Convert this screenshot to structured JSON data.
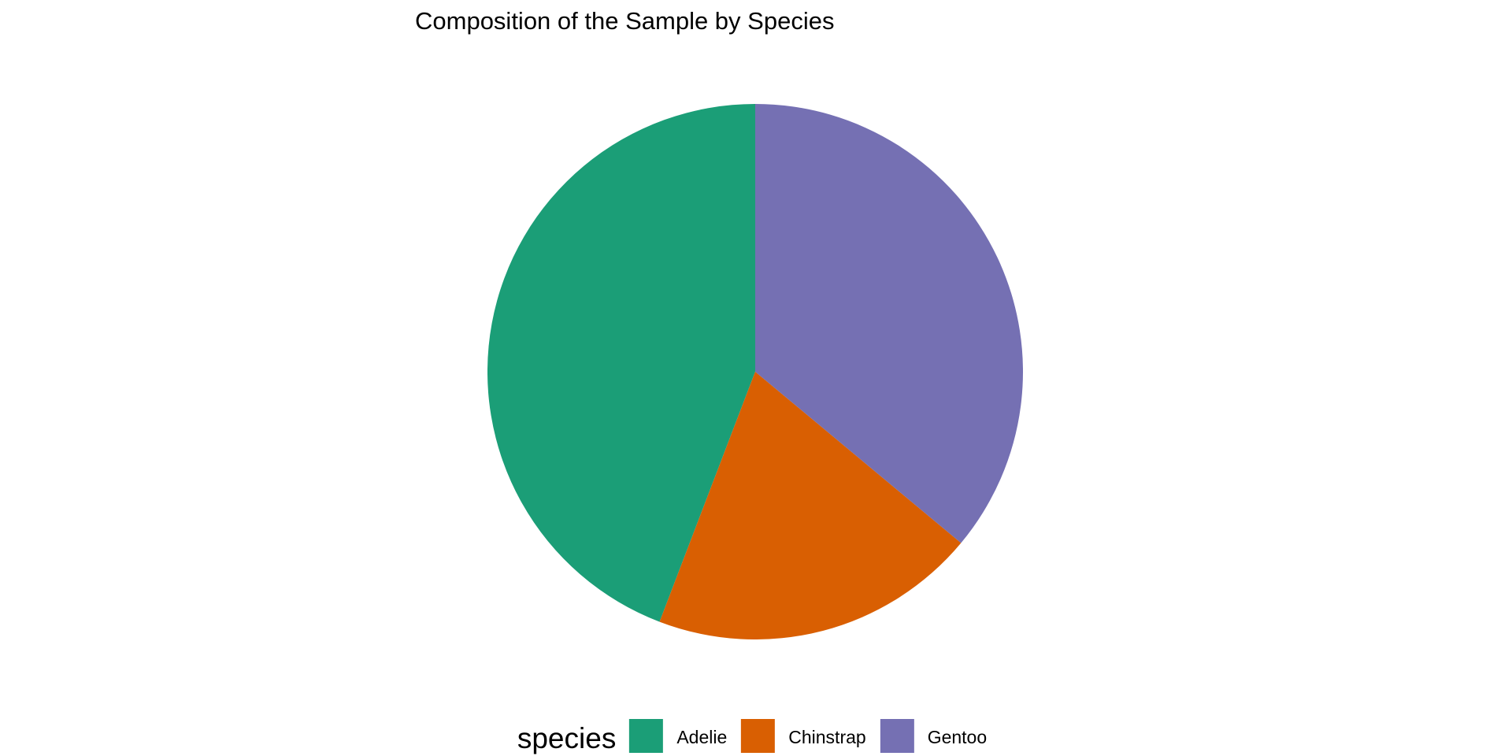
{
  "page": {
    "background": "#FFFFFF",
    "text_color": "#000000"
  },
  "chart_data": {
    "type": "pie",
    "title": "Composition of the Sample by Species",
    "legend_title": "species",
    "legend_position": "bottom",
    "categories": [
      "Adelie",
      "Chinstrap",
      "Gentoo"
    ],
    "values": [
      152,
      68,
      124
    ],
    "percents": [
      44.2,
      19.8,
      36.0
    ],
    "colors": [
      "#1B9E77",
      "#D95F02",
      "#7570B3"
    ],
    "start_angle": "12-o'clock",
    "winding": "counterclockwise",
    "grid": "off",
    "background": "#FFFFFF"
  }
}
